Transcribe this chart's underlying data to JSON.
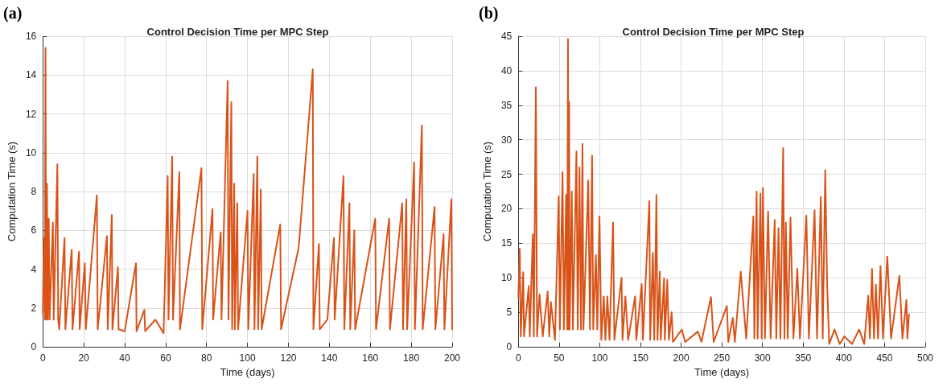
{
  "chart_data": [
    {
      "type": "line",
      "title": "Control Decision Time per MPC Step",
      "xlabel": "Time (days)",
      "ylabel": "Computation Time (s)",
      "annotations": [
        "(a)"
      ],
      "x": [
        0,
        0.5,
        1,
        1.3,
        1.6,
        2,
        2.4,
        2.9,
        3.3,
        4.9,
        5.3,
        7.1,
        7.5,
        8,
        10.6,
        11,
        14.1,
        14.5,
        17.7,
        18,
        20.5,
        21,
        26.4,
        26.8,
        31.3,
        31.7,
        33.7,
        34,
        36.7,
        37,
        40,
        45.5,
        45.8,
        49.6,
        50,
        55,
        59,
        61,
        61.4,
        63.2,
        63.6,
        66.7,
        67,
        77.5,
        77.9,
        82.9,
        83.2,
        86.9,
        87.3,
        90.3,
        90.7,
        92.1,
        92.5,
        93.5,
        93.8,
        95,
        95.4,
        100,
        100.4,
        103,
        103.4,
        104.8,
        105.2,
        106.5,
        106.9,
        116,
        116.4,
        125,
        131.9,
        132.2,
        134.9,
        135.3,
        139,
        142.2,
        142.6,
        146.9,
        147.3,
        149.8,
        150.2,
        152.2,
        152.6,
        162.4,
        162.8,
        169.2,
        169.6,
        175.6,
        176,
        177.6,
        178,
        181.4,
        181.8,
        185.2,
        185.6,
        191.4,
        191.8,
        195.8,
        196.2,
        199.6,
        200
      ],
      "series": [
        {
          "color": "#d95319",
          "values": [
            1.7,
            5.6,
            1.4,
            15.4,
            1.4,
            8.4,
            1.4,
            6.6,
            1.4,
            6.4,
            1.4,
            9.4,
            1.4,
            0.9,
            5.6,
            0.9,
            5.0,
            0.9,
            4.9,
            0.9,
            4.3,
            0.9,
            7.8,
            0.9,
            5.7,
            0.9,
            6.8,
            0.9,
            4.1,
            0.9,
            0.8,
            4.3,
            0.8,
            1.9,
            0.8,
            1.4,
            0.7,
            8.8,
            1.4,
            9.8,
            1.4,
            9.0,
            0.9,
            9.2,
            0.9,
            7.1,
            1.4,
            5.9,
            1.4,
            13.7,
            1.4,
            12.6,
            0.9,
            8.4,
            0.9,
            7.4,
            0.9,
            7.0,
            0.9,
            8.9,
            0.9,
            9.8,
            0.9,
            8.1,
            0.9,
            6.3,
            0.9,
            5.1,
            14.3,
            0.9,
            5.3,
            0.9,
            1.4,
            5.6,
            1.4,
            8.8,
            0.9,
            7.4,
            0.9,
            6.0,
            0.9,
            6.6,
            0.9,
            6.6,
            0.9,
            7.4,
            0.9,
            7.6,
            0.9,
            9.5,
            0.9,
            11.4,
            0.9,
            7.2,
            0.9,
            5.8,
            0.9,
            7.6,
            0.9
          ]
        }
      ],
      "xlim": [
        0,
        200
      ],
      "xticks": [
        0,
        20,
        40,
        60,
        80,
        100,
        120,
        140,
        160,
        180,
        200
      ],
      "ylim": [
        0,
        16
      ],
      "yticks": [
        0,
        2,
        4,
        6,
        8,
        10,
        12,
        14,
        16
      ],
      "grid": true,
      "line_style": "solid",
      "marker": "none"
    },
    {
      "type": "line",
      "title": "Control Decision Time per MPC Step",
      "xlabel": "Time (days)",
      "ylabel": "Computation Time (s)",
      "annotations": [
        "(b)"
      ],
      "x": [
        0,
        1.7,
        3,
        6,
        7,
        12.8,
        14,
        17.8,
        19,
        21.5,
        23,
        26,
        30,
        36,
        38,
        40,
        45,
        49.6,
        51,
        54.3,
        56,
        58.7,
        60,
        61,
        61.7,
        62.4,
        63,
        65.7,
        67,
        71.4,
        73,
        75.1,
        77,
        78.8,
        80,
        85.9,
        88,
        90.6,
        92,
        95.3,
        97,
        99.7,
        102,
        105,
        107,
        109.4,
        112,
        116.4,
        118,
        126.8,
        128,
        131.5,
        135,
        143.5,
        145,
        151.6,
        153,
        161,
        162,
        165.3,
        167,
        169.7,
        171,
        173.8,
        175,
        179.1,
        180,
        183,
        185,
        188.4,
        190,
        200.8,
        205,
        220.6,
        225,
        236.7,
        240,
        256.2,
        258,
        263.6,
        266,
        273.3,
        280,
        288.8,
        290,
        292.8,
        294,
        297.5,
        299,
        300.5,
        303,
        306.9,
        310,
        315,
        317,
        319.7,
        322,
        325.4,
        327,
        328.7,
        331,
        334.4,
        338,
        342.8,
        346,
        353.9,
        357,
        364,
        367,
        371.7,
        374,
        377.1,
        379.5,
        382,
        388.5,
        395,
        400.6,
        410,
        418.8,
        425,
        429.9,
        432,
        434.6,
        437,
        439.3,
        442,
        445,
        448,
        453.4,
        458,
        468.2,
        472,
        476.9,
        478,
        480
      ],
      "series": [
        {
          "color": "#d95319",
          "values": [
            7.2,
            14.2,
            1.5,
            10.8,
            1.5,
            8.8,
            1.5,
            16.3,
            1.5,
            37.6,
            1.5,
            7.6,
            1.5,
            8.0,
            1.5,
            6.5,
            1.0,
            21.8,
            2.5,
            25.3,
            2.5,
            22,
            2.5,
            44.6,
            2.5,
            35.5,
            2.5,
            22.5,
            2.5,
            28.3,
            2.5,
            26,
            2.5,
            29.4,
            2.5,
            24.1,
            2.5,
            27.7,
            2.5,
            13.3,
            2.5,
            18.9,
            1.0,
            7.3,
            1.0,
            7.3,
            1.0,
            18,
            1.0,
            10,
            1.0,
            7.3,
            1.0,
            7.3,
            1.0,
            9.1,
            1.0,
            21.1,
            1.0,
            13.6,
            1.0,
            22,
            1.0,
            10.9,
            1.0,
            9.9,
            1.0,
            9.7,
            1.0,
            5,
            0.7,
            2.5,
            0.7,
            2.2,
            0.7,
            7.2,
            0.7,
            5.9,
            0.7,
            4.2,
            0.7,
            10.9,
            1.2,
            18.9,
            1.2,
            22.5,
            1.2,
            22.2,
            1.2,
            23,
            1.2,
            19.6,
            1.2,
            18.4,
            1.2,
            17.2,
            1.2,
            28.8,
            1.2,
            18,
            1.2,
            18.7,
            1.2,
            11.3,
            1.2,
            19,
            1.2,
            19.8,
            1.2,
            21.7,
            1.2,
            25.6,
            8.7,
            0.4,
            2.5,
            0.4,
            1.5,
            0.4,
            2.5,
            0.4,
            7.4,
            1.2,
            11.3,
            1.2,
            9,
            1.2,
            11.7,
            1.2,
            13.1,
            1.2,
            10.3,
            1.2,
            6.8,
            1.2,
            4.7
          ]
        }
      ],
      "xlim": [
        0,
        500
      ],
      "xticks": [
        0,
        50,
        100,
        150,
        200,
        250,
        300,
        350,
        400,
        450,
        500
      ],
      "ylim": [
        0,
        45
      ],
      "yticks": [
        0,
        5,
        10,
        15,
        20,
        25,
        30,
        35,
        40,
        45
      ],
      "grid": true,
      "line_style": "solid",
      "marker": "none"
    }
  ]
}
